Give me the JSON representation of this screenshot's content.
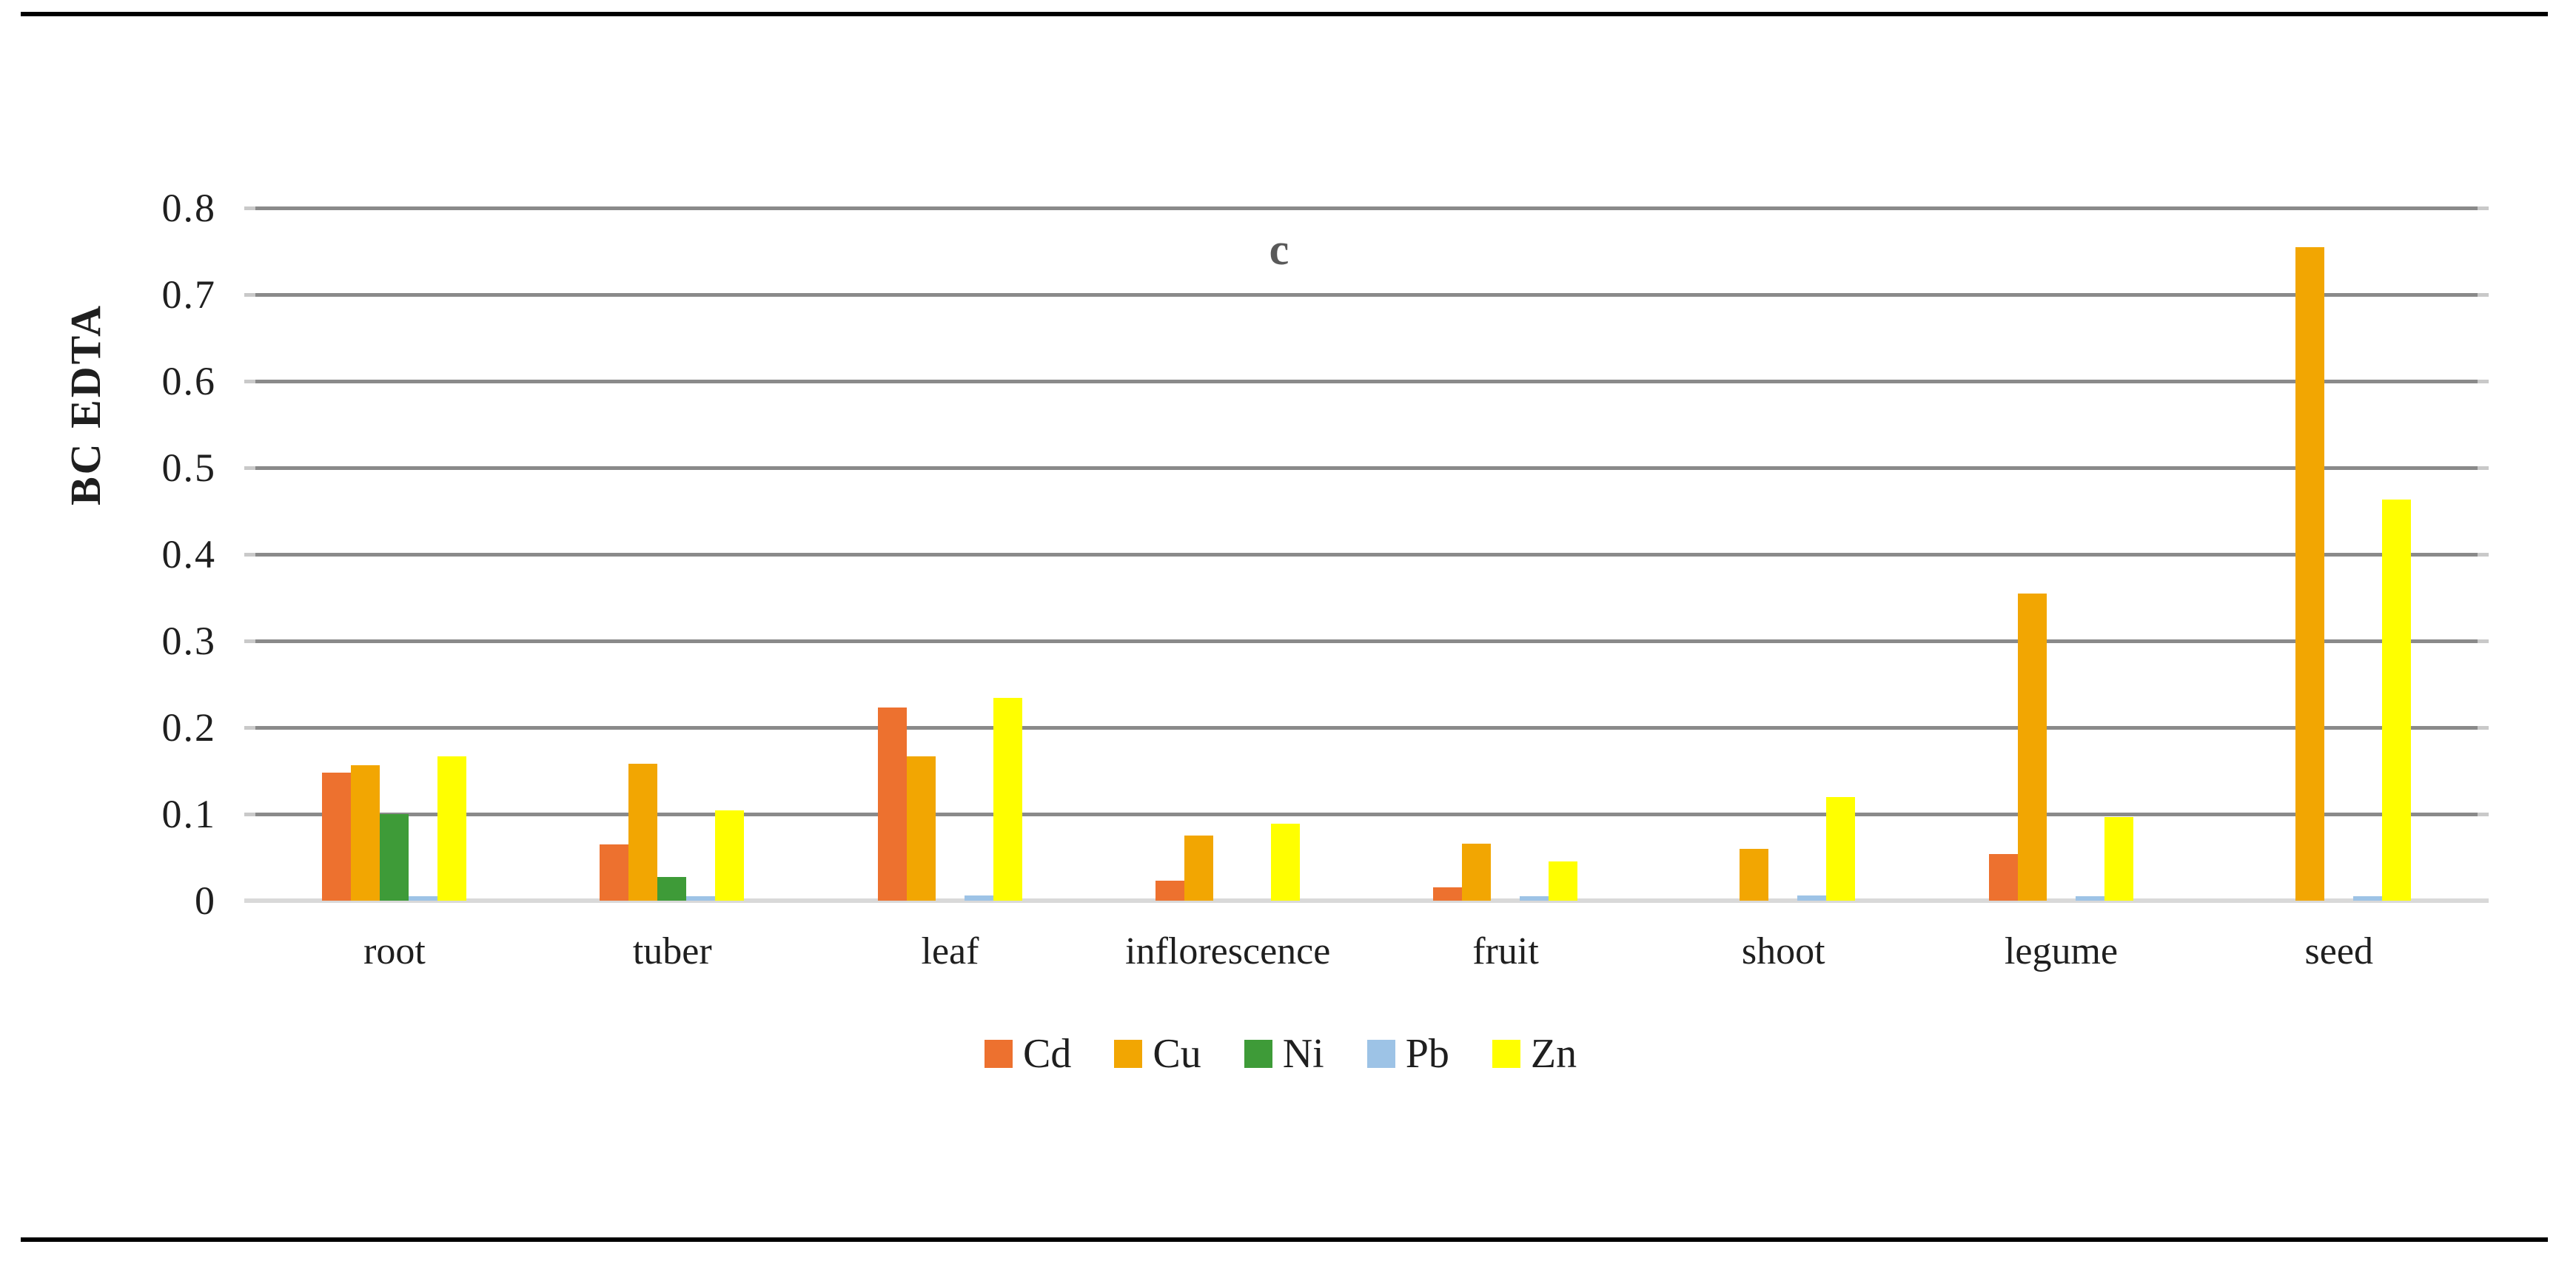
{
  "figure": {
    "panel_label": "c"
  },
  "chart_data": {
    "type": "bar",
    "title": "c",
    "xlabel": "",
    "ylabel": "BC EDTA",
    "ylim": [
      0,
      0.8
    ],
    "yticks": [
      0,
      0.1,
      0.2,
      0.3,
      0.4,
      0.5,
      0.6,
      0.7,
      0.8
    ],
    "ytick_labels": [
      "0",
      "0.1",
      "0.2",
      "0.3",
      "0.4",
      "0.5",
      "0.6",
      "0.7",
      "0.8"
    ],
    "grid": "horizontal",
    "legend_position": "bottom-center",
    "categories": [
      "root",
      "tuber",
      "leaf",
      "inflorescence",
      "fruit",
      "shoot",
      "legume",
      "seed"
    ],
    "series": [
      {
        "name": "Cd",
        "color": "#ED712F",
        "values": [
          0.148,
          0.065,
          0.223,
          0.023,
          0.015,
          0,
          0.054,
          0
        ]
      },
      {
        "name": "Cu",
        "color": "#F2A602",
        "values": [
          0.156,
          0.158,
          0.167,
          0.075,
          0.066,
          0.06,
          0.355,
          0.755
        ]
      },
      {
        "name": "Ni",
        "color": "#3E9B38",
        "values": [
          0.1,
          0.027,
          0,
          0,
          0,
          0,
          0,
          0
        ]
      },
      {
        "name": "Pb",
        "color": "#9DC3E6",
        "values": [
          0.005,
          0.005,
          0.006,
          0,
          0.005,
          0.006,
          0.005,
          0.005
        ]
      },
      {
        "name": "Zn",
        "color": "#FFFF00",
        "values": [
          0.167,
          0.104,
          0.234,
          0.089,
          0.045,
          0.12,
          0.097,
          0.463
        ]
      }
    ]
  },
  "colors": {
    "gridline": "#8A8A8A",
    "gridline_stub": "#C9C9C9",
    "baseline": "#D9D9D9",
    "text": "#1F1F1F",
    "panel_label": "#595959",
    "rule": "#000000"
  }
}
